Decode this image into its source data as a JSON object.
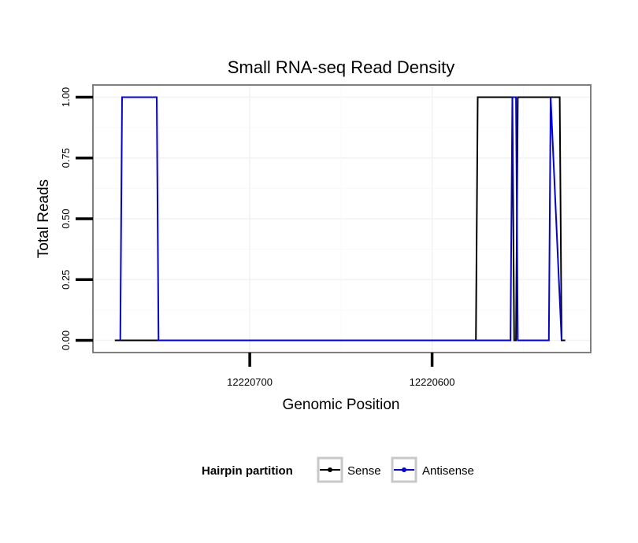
{
  "chart_data": {
    "type": "line",
    "title": "Small RNA-seq Read Density",
    "xlabel": "Genomic Position",
    "ylabel": "Total Reads",
    "x_reversed": true,
    "xlim": [
      12220786,
      12220513
    ],
    "ylim": [
      -0.05,
      1.05
    ],
    "x_ticks": [
      12220700,
      12220600
    ],
    "x_tick_labels": [
      "12220700",
      "12220600"
    ],
    "y_ticks": [
      0,
      0.25,
      0.5,
      0.75,
      1.0
    ],
    "y_tick_labels": [
      "0.00",
      "0.25",
      "0.50",
      "0.75",
      "1.00"
    ],
    "series": [
      {
        "name": "Sense",
        "color": "#000000",
        "x": [
          12220774,
          12220576,
          12220575,
          12220556,
          12220555,
          12220554,
          12220553,
          12220530,
          12220529,
          12220527
        ],
        "y": [
          0,
          0,
          1,
          1,
          0,
          0,
          1,
          1,
          0,
          0
        ]
      },
      {
        "name": "Antisense",
        "color": "#0000ee",
        "x": [
          12220771,
          12220770,
          12220751,
          12220750,
          12220576,
          12220557,
          12220556,
          12220554,
          12220553,
          12220536,
          12220535,
          12220529
        ],
        "y": [
          0,
          1,
          1,
          0,
          0,
          0,
          1,
          1,
          0,
          0,
          1,
          0
        ]
      }
    ],
    "legend": {
      "title": "Hairpin partition",
      "position": "bottom",
      "entries": [
        "Sense",
        "Antisense"
      ]
    }
  }
}
